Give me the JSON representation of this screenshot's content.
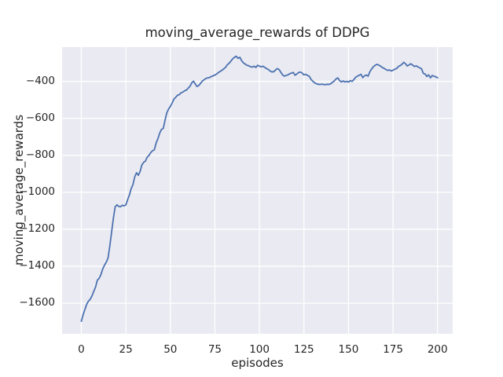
{
  "figure": {
    "background": "#ffffff"
  },
  "chart_data": {
    "type": "line",
    "title": "moving_average_rewards of DDPG",
    "xlabel": "episodes",
    "ylabel": "moving_average_rewards",
    "legend": "none",
    "grid": true,
    "xlim": [
      -10.8,
      208.5
    ],
    "ylim": [
      -1765,
      -215
    ],
    "x_ticks": {
      "values": [
        0,
        25,
        50,
        75,
        100,
        125,
        150,
        175,
        200
      ],
      "labels": [
        "0",
        "25",
        "50",
        "75",
        "100",
        "125",
        "150",
        "175",
        "200"
      ]
    },
    "y_ticks": {
      "values": [
        -400,
        -600,
        -800,
        -1000,
        -1200,
        -1400,
        -1600
      ],
      "labels": [
        "−400",
        "−600",
        "−800",
        "−1000",
        "−1200",
        "−1400",
        "−1600"
      ]
    },
    "x_start": 0,
    "x_step": 1,
    "values": [
      -1697,
      -1662,
      -1634,
      -1606,
      -1588,
      -1578,
      -1560,
      -1535,
      -1512,
      -1475,
      -1465,
      -1445,
      -1415,
      -1394,
      -1378,
      -1355,
      -1290,
      -1215,
      -1140,
      -1078,
      -1068,
      -1076,
      -1078,
      -1070,
      -1073,
      -1068,
      -1040,
      -1014,
      -980,
      -958,
      -916,
      -894,
      -908,
      -887,
      -852,
      -838,
      -831,
      -810,
      -800,
      -785,
      -775,
      -770,
      -733,
      -710,
      -680,
      -660,
      -655,
      -610,
      -570,
      -550,
      -535,
      -517,
      -496,
      -486,
      -475,
      -472,
      -462,
      -458,
      -451,
      -447,
      -437,
      -427,
      -408,
      -399,
      -415,
      -428,
      -422,
      -410,
      -398,
      -391,
      -384,
      -381,
      -379,
      -374,
      -370,
      -366,
      -360,
      -352,
      -346,
      -340,
      -332,
      -324,
      -310,
      -302,
      -290,
      -278,
      -270,
      -264,
      -276,
      -270,
      -288,
      -300,
      -307,
      -313,
      -316,
      -321,
      -323,
      -318,
      -325,
      -313,
      -318,
      -322,
      -318,
      -325,
      -331,
      -336,
      -344,
      -349,
      -348,
      -339,
      -331,
      -336,
      -351,
      -365,
      -372,
      -368,
      -365,
      -359,
      -355,
      -352,
      -367,
      -360,
      -352,
      -350,
      -355,
      -365,
      -362,
      -368,
      -373,
      -390,
      -400,
      -408,
      -413,
      -416,
      -417,
      -415,
      -417,
      -418,
      -416,
      -417,
      -413,
      -405,
      -398,
      -387,
      -381,
      -396,
      -403,
      -398,
      -403,
      -400,
      -404,
      -396,
      -400,
      -391,
      -378,
      -372,
      -367,
      -362,
      -380,
      -370,
      -366,
      -372,
      -348,
      -333,
      -321,
      -313,
      -308,
      -312,
      -318,
      -325,
      -330,
      -336,
      -341,
      -338,
      -344,
      -340,
      -334,
      -331,
      -320,
      -315,
      -308,
      -297,
      -305,
      -317,
      -311,
      -305,
      -312,
      -320,
      -316,
      -322,
      -327,
      -332,
      -357,
      -360,
      -374,
      -365,
      -381,
      -368,
      -373,
      -375,
      -381
    ],
    "style": {
      "axes_background": "#eaeaf2",
      "grid_color": "#ffffff",
      "line_color": "#4c72b0",
      "text_color": "#262626"
    }
  }
}
